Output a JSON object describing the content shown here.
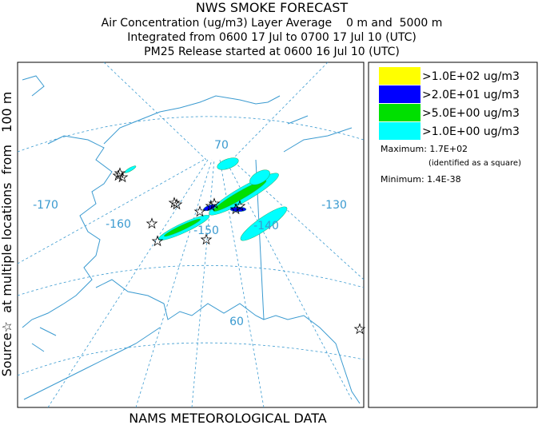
{
  "header": {
    "title": "NWS SMOKE FORECAST",
    "lines": [
      "Air Concentration (ug/m3) Layer Average    0 m and  5000 m",
      "Integrated from 0600 17 Jul to 0700 17 Jul 10 (UTC)",
      "PM25 Release started at 0600 16 Jul 10 (UTC)"
    ]
  },
  "side_label": "Source☆  at multiple locations  from   100 m",
  "footer": "NAMS METEOROLOGICAL DATA",
  "map": {
    "graticule_labels": [
      "70",
      "-170",
      "-160",
      "-150",
      "-140",
      "-130",
      "60"
    ]
  },
  "legend": {
    "entries": [
      {
        "label": ">1.0E+02 ug/m3",
        "color": "#ffff00"
      },
      {
        "label": ">2.0E+01 ug/m3",
        "color": "#0000ff"
      },
      {
        "label": ">5.0E+00 ug/m3",
        "color": "#00e000"
      },
      {
        "label": ">1.0E+00 ug/m3",
        "color": "#00ffff"
      }
    ],
    "maximum": "Maximum: 1.7E+02",
    "maximum_note": "(identified as a square)",
    "minimum": "Minimum: 1.4E-38"
  }
}
